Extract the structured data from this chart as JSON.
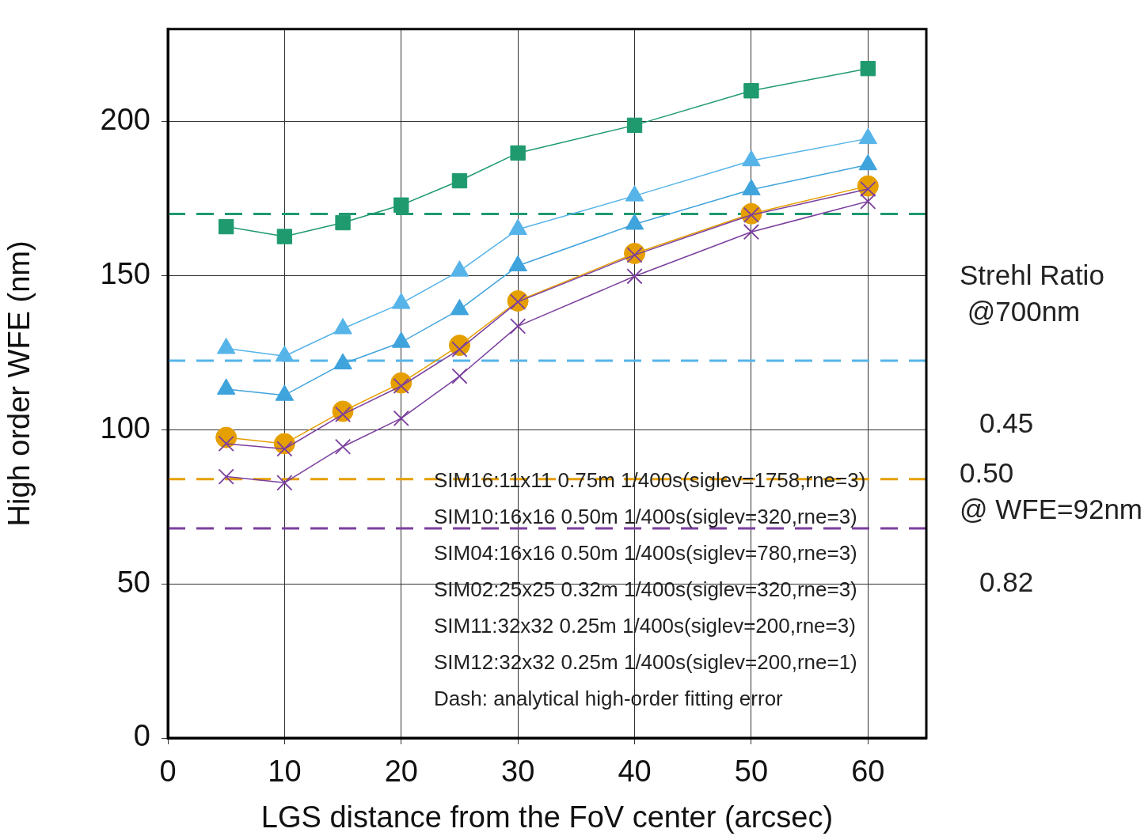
{
  "chart_data": {
    "type": "line",
    "xlabel": "LGS distance from the FoV center (arcsec)",
    "ylabel": "High order WFE (nm)",
    "x": [
      5,
      10,
      15,
      20,
      25,
      30,
      40,
      50,
      60
    ],
    "series": [
      {
        "color": "#1f9a6e",
        "marker": "square",
        "values": [
          165.9,
          162.7,
          167.2,
          172.9,
          180.8,
          189.8,
          198.8,
          210,
          217.2
        ]
      },
      {
        "color": "#56b4e9",
        "marker": "triangle",
        "values": [
          126.4,
          123.9,
          132.8,
          141,
          151.5,
          165,
          175.9,
          187.3,
          194.5
        ]
      },
      {
        "color": "#3fa3dc",
        "marker": "triangle",
        "values": [
          113.2,
          111.2,
          121.4,
          128.4,
          139,
          153.2,
          166.7,
          177.9,
          186
        ]
      },
      {
        "color": "#e69f00",
        "marker": "circle",
        "values": [
          97.5,
          95.5,
          106,
          115.2,
          127.4,
          141.8,
          157.2,
          170.1,
          179.1
        ]
      },
      {
        "color": "#7b3f9e",
        "marker": "cross",
        "values": [
          95.5,
          93.8,
          105,
          114.2,
          126.1,
          141.5,
          156.7,
          169.7,
          178.1
        ]
      },
      {
        "color": "#7b3f9e",
        "marker": "cross",
        "values": [
          84.8,
          82.8,
          94.5,
          103.7,
          117.4,
          133.6,
          149.8,
          164.2,
          174.1
        ]
      }
    ],
    "ref_lines": [
      {
        "axis": "y",
        "value": 170,
        "color": "#1f9a6e",
        "line_style": "dashed"
      },
      {
        "axis": "y",
        "value": 122.4,
        "color": "#56b4e9",
        "line_style": "dashed"
      },
      {
        "axis": "y",
        "value": 84,
        "color": "#e69f00",
        "line_style": "dashed"
      },
      {
        "axis": "y",
        "value": 68,
        "color": "#7b3f9e",
        "line_style": "dashed"
      }
    ],
    "xlim": [
      0,
      65
    ],
    "xticks": [
      0,
      10,
      20,
      30,
      40,
      50,
      60
    ],
    "ylim": [
      0,
      230
    ],
    "yticks": [
      0,
      50,
      100,
      150,
      200
    ],
    "grid": true,
    "legend": false,
    "line_style": "solid",
    "annotations": [
      "SIM16:11x11 0.75m 1/400s(siglev=1758,rne=3)",
      "SIM10:16x16 0.50m 1/400s(siglev=320,rne=3)",
      "SIM04:16x16 0.50m 1/400s(siglev=780,rne=3)",
      "SIM02:25x25 0.32m 1/400s(siglev=320,rne=3)",
      "SIM11:32x32 0.25m 1/400s(siglev=200,rne=3)",
      "SIM12:32x32 0.25m 1/400s(siglev=200,rne=1)",
      "Dash: analytical high-order fitting error",
      "Strehl Ratio\n @700nm",
      "0.45",
      "0.50\n@ WFE=92nm",
      "0.82"
    ]
  }
}
